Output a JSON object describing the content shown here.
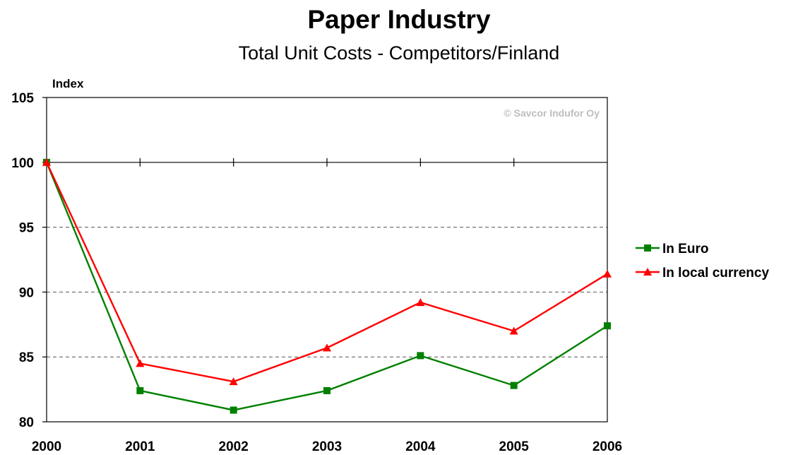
{
  "chart_data": {
    "type": "line",
    "title": "Paper Industry",
    "subtitle": "Total Unit Costs - Competitors/Finland",
    "ylabel": "Index",
    "xlabel": "",
    "categories": [
      "2000",
      "2001",
      "2002",
      "2003",
      "2004",
      "2005",
      "2006"
    ],
    "yticks": [
      "80",
      "85",
      "90",
      "95",
      "100",
      "105"
    ],
    "ylim": [
      80,
      105
    ],
    "grid": "dashed horizontal at 85, 90, 95",
    "legend_position": "right",
    "annotation": "© Savcor Indufor Oy",
    "series": [
      {
        "name": "In Euro",
        "color": "#008000",
        "marker": "square",
        "values": [
          100,
          82.4,
          80.9,
          82.4,
          85.1,
          82.8,
          87.4
        ]
      },
      {
        "name": "In local currency",
        "color": "#ff0000",
        "marker": "triangle",
        "values": [
          100,
          84.5,
          83.1,
          85.7,
          89.2,
          87.0,
          91.4
        ]
      }
    ]
  }
}
